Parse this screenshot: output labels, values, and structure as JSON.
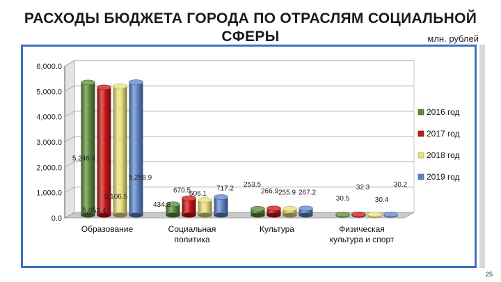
{
  "title": "РАСХОДЫ БЮДЖЕТА ГОРОДА ПО ОТРАСЛЯМ СОЦИАЛЬНОЙ СФЕРЫ",
  "unit_label": "млн. рублей",
  "page_number": "25",
  "colors": {
    "series_2016": "#5a8a3a",
    "series_2017": "#c81414",
    "series_2018": "#e8e07a",
    "series_2019": "#5b84c8",
    "frame": "#3d6fc0"
  },
  "chart_data": {
    "type": "bar",
    "style": "3d-cylinder",
    "categories": [
      "Образование",
      "Социальная политика",
      "Культура",
      "Физическая культура и спорт"
    ],
    "category_lines": [
      [
        "Образование"
      ],
      [
        "Социальная",
        "политика"
      ],
      [
        "Культура"
      ],
      [
        "Физическая",
        "культура и спорт"
      ]
    ],
    "series": [
      {
        "name": "2016 год",
        "values": [
          5246.4,
          434.8,
          253.5,
          30.5
        ]
      },
      {
        "name": "2017 год",
        "values": [
          5053.4,
          670.5,
          266.9,
          32.3
        ]
      },
      {
        "name": "2018 год",
        "values": [
          5106.5,
          606.1,
          255.9,
          30.4
        ]
      },
      {
        "name": "2019 год",
        "values": [
          5258.9,
          717.2,
          267.2,
          30.2
        ]
      }
    ],
    "data_labels": [
      [
        "5,246.4",
        "5,053.4",
        "5,106.5",
        "5,258.9"
      ],
      [
        "434.8",
        "670.5",
        "606.1",
        "717.2"
      ],
      [
        "253.5",
        "266.9",
        "255.9",
        "267.2"
      ],
      [
        "30.5",
        "32.3",
        "30.4",
        "30.2"
      ]
    ],
    "yticks": [
      "0.0",
      "1,000.0",
      "2,000.0",
      "3,000.0",
      "4,000.0",
      "5,000.0",
      "6,000.0"
    ],
    "ylim": [
      0,
      6000
    ],
    "legend_position": "right",
    "grid": true
  }
}
